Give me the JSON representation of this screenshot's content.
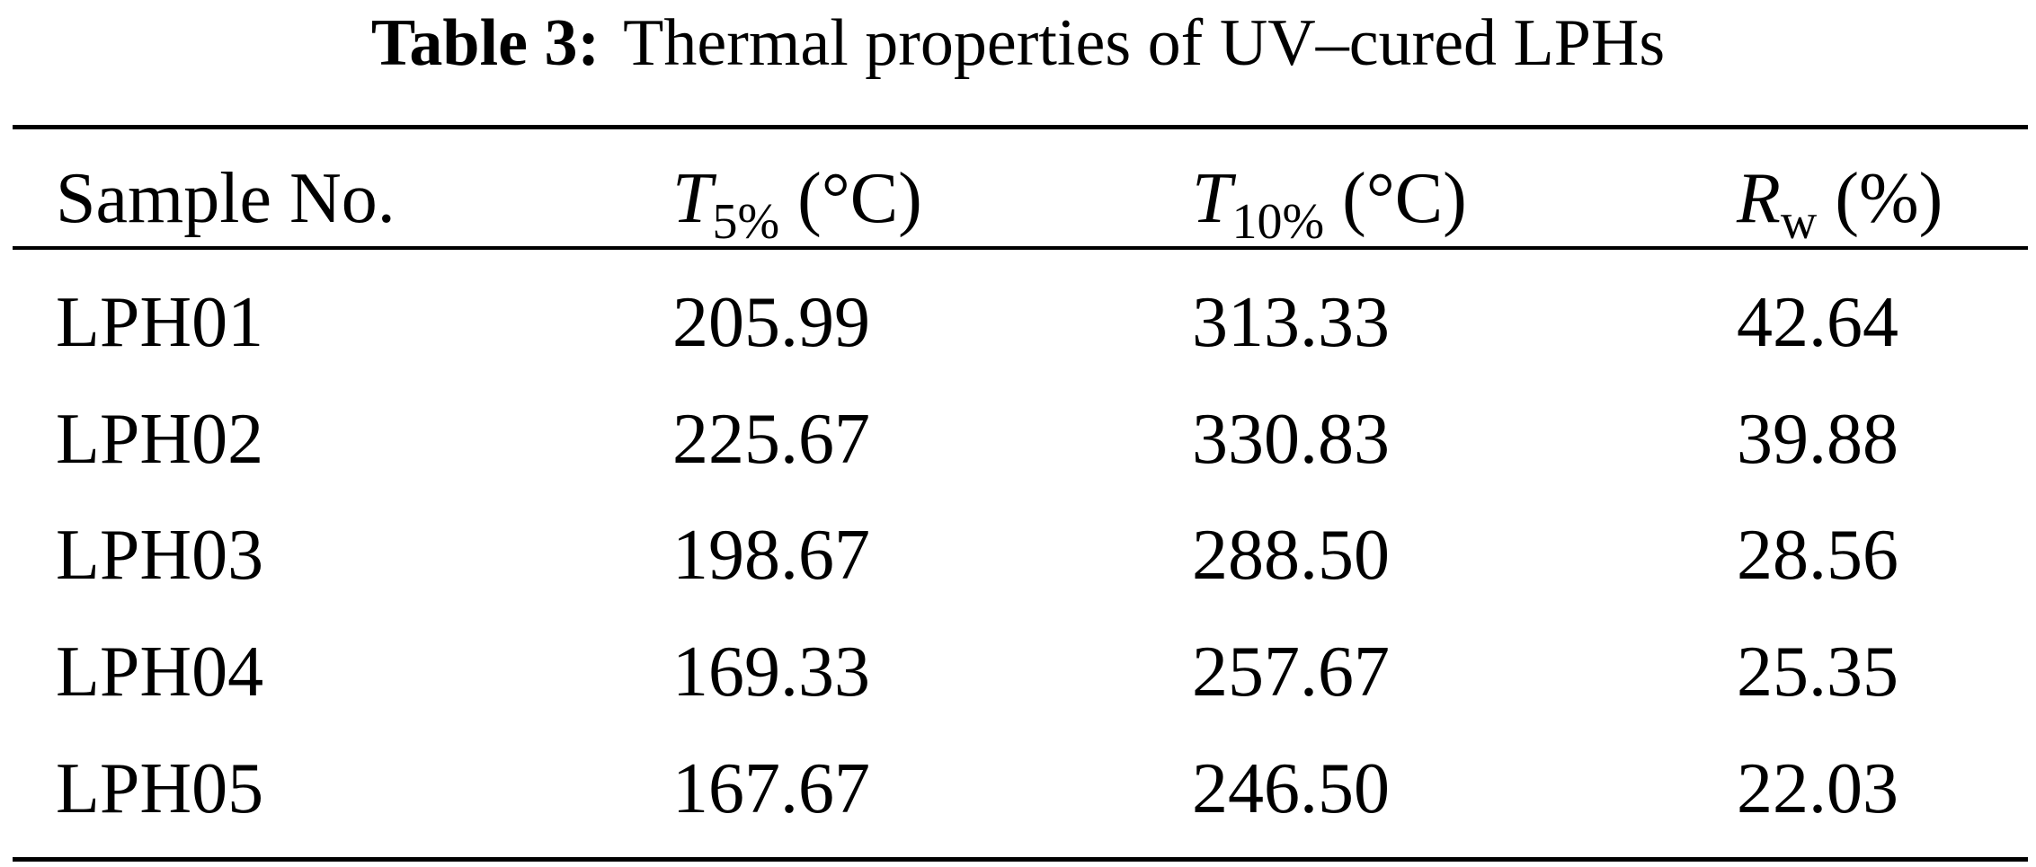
{
  "caption": {
    "label": "Table 3:",
    "text": "Thermal properties of UV–cured LPHs"
  },
  "table": {
    "headers": [
      {
        "main": "Sample No.",
        "sub": "",
        "unit": ""
      },
      {
        "main": "T",
        "sub": "5%",
        "unit": "(°C)"
      },
      {
        "main": "T",
        "sub": "10%",
        "unit": "(°C)"
      },
      {
        "main": "R",
        "sub": "w",
        "unit": "(%)"
      }
    ],
    "rows": [
      [
        "LPH01",
        "205.99",
        "313.33",
        "42.64"
      ],
      [
        "LPH02",
        "225.67",
        "330.83",
        "39.88"
      ],
      [
        "LPH03",
        "198.67",
        "288.50",
        "28.56"
      ],
      [
        "LPH04",
        "169.33",
        "257.67",
        "25.35"
      ],
      [
        "LPH05",
        "167.67",
        "246.50",
        "22.03"
      ]
    ]
  }
}
